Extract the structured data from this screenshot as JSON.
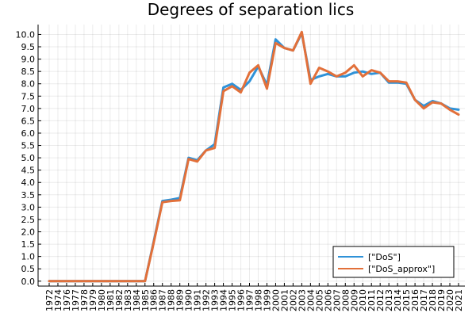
{
  "chart_data": {
    "type": "line",
    "title": "Degrees of separation lics",
    "xlabel": "",
    "ylabel": "",
    "x": [
      "1972",
      "1974",
      "1976",
      "1977",
      "1978",
      "1979",
      "1980",
      "1981",
      "1982",
      "1983",
      "1984",
      "1985",
      "1986",
      "1987",
      "1988",
      "1989",
      "1990",
      "1991",
      "1992",
      "1993",
      "1994",
      "1995",
      "1996",
      "1997",
      "1998",
      "1999",
      "2000",
      "2001",
      "2002",
      "2003",
      "2004",
      "2005",
      "2006",
      "2007",
      "2008",
      "2009",
      "2010",
      "2011",
      "2012",
      "2013",
      "2014",
      "2015",
      "2016",
      "2017",
      "2018",
      "2019",
      "2020",
      "2021"
    ],
    "ylim": [
      -0.2,
      10.4
    ],
    "yticks": [
      0.0,
      0.5,
      1.0,
      1.5,
      2.0,
      2.5,
      3.0,
      3.5,
      4.0,
      4.5,
      5.0,
      5.5,
      6.0,
      6.5,
      7.0,
      7.5,
      8.0,
      8.5,
      9.0,
      9.5,
      10.0
    ],
    "ytick_labels": [
      "0.0",
      "0.5",
      "1.0",
      "1.5",
      "2.0",
      "2.5",
      "3.0",
      "3.5",
      "4.0",
      "4.5",
      "5.0",
      "5.5",
      "6.0",
      "6.5",
      "7.0",
      "7.5",
      "8.0",
      "8.5",
      "9.0",
      "9.5",
      "10.0"
    ],
    "grid": true,
    "legend_position": "bottom-right",
    "series": [
      {
        "name": "[\"DoS\"]",
        "color": "#2f92d8",
        "values": [
          0,
          0,
          0,
          0,
          0,
          0,
          0,
          0,
          0,
          0,
          0,
          0,
          1.6,
          3.25,
          3.3,
          3.37,
          5.0,
          4.9,
          5.3,
          5.55,
          7.85,
          8.0,
          7.75,
          8.1,
          8.7,
          7.95,
          9.8,
          9.45,
          9.35,
          10.05,
          8.15,
          8.3,
          8.4,
          8.3,
          8.3,
          8.45,
          8.5,
          8.4,
          8.45,
          8.05,
          8.05,
          8.0,
          7.35,
          7.1,
          7.3,
          7.2,
          7.0,
          6.95
        ]
      },
      {
        "name": "[\"DoS_approx\"]",
        "color": "#e2703a",
        "values": [
          0,
          0,
          0,
          0,
          0,
          0,
          0,
          0,
          0,
          0,
          0,
          0,
          1.55,
          3.2,
          3.25,
          3.28,
          4.95,
          4.85,
          5.3,
          5.4,
          7.7,
          7.9,
          7.65,
          8.45,
          8.75,
          7.8,
          9.65,
          9.45,
          9.35,
          10.1,
          8.0,
          8.65,
          8.5,
          8.3,
          8.45,
          8.75,
          8.3,
          8.55,
          8.45,
          8.1,
          8.1,
          8.05,
          7.35,
          7.0,
          7.25,
          7.2,
          6.95,
          6.75
        ]
      }
    ]
  }
}
